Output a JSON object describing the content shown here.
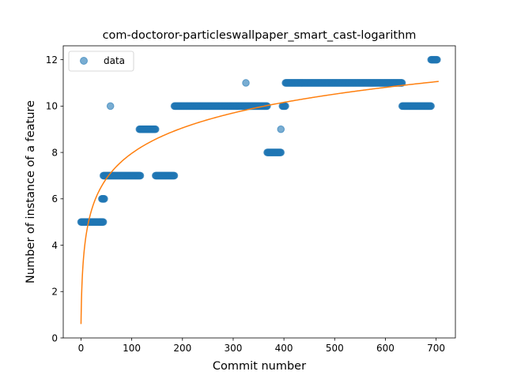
{
  "chart_data": {
    "type": "scatter",
    "title": "com-doctoror-particleswallpaper_smart_cast-logarithm",
    "xlabel": "Commit number",
    "ylabel": "Number of instance of a feature",
    "xlim": [
      -35,
      738
    ],
    "ylim": [
      0,
      12.6
    ],
    "xticks": [
      0,
      100,
      200,
      300,
      400,
      500,
      600,
      700
    ],
    "yticks": [
      0,
      2,
      4,
      6,
      8,
      10,
      12
    ],
    "grid": false,
    "legend": {
      "placement": "top-left",
      "entries": [
        "data"
      ]
    },
    "colors": {
      "data": "#1f77b4",
      "fit": "#ff7f0e"
    },
    "series": [
      {
        "name": "data",
        "kind": "scatter",
        "runs": [
          {
            "x_start": 0,
            "x_end": 44,
            "y": 5
          },
          {
            "x_start": 41,
            "x_end": 46,
            "y": 6
          },
          {
            "x_start": 44,
            "x_end": 117,
            "y": 7
          },
          {
            "x_start": 58,
            "x_end": 58,
            "y": 10
          },
          {
            "x_start": 115,
            "x_end": 147,
            "y": 9
          },
          {
            "x_start": 147,
            "x_end": 184,
            "y": 7
          },
          {
            "x_start": 184,
            "x_end": 367,
            "y": 10
          },
          {
            "x_start": 325,
            "x_end": 325,
            "y": 11
          },
          {
            "x_start": 367,
            "x_end": 394,
            "y": 8
          },
          {
            "x_start": 394,
            "x_end": 394,
            "y": 9
          },
          {
            "x_start": 397,
            "x_end": 403,
            "y": 10
          },
          {
            "x_start": 403,
            "x_end": 633,
            "y": 11
          },
          {
            "x_start": 633,
            "x_end": 690,
            "y": 10
          },
          {
            "x_start": 690,
            "x_end": 702,
            "y": 12
          }
        ]
      },
      {
        "kind": "line",
        "model": "y = a + b*ln(x+1)",
        "coefficients": {
          "a": 0.6,
          "b": 1.595
        },
        "x_range": [
          0,
          705
        ]
      }
    ]
  }
}
